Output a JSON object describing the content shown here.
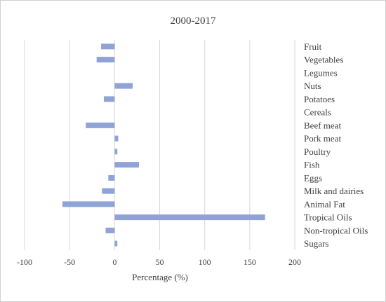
{
  "chart_data": {
    "type": "bar",
    "orientation": "horizontal",
    "title": "2000-2017",
    "xlabel": "Percentage (%)",
    "ylabel": "",
    "xlim": [
      -100,
      200
    ],
    "xticks": [
      -100,
      -50,
      0,
      50,
      100,
      150,
      200
    ],
    "grid": true,
    "color": "#8fa3d6",
    "categories": [
      "Fruit",
      "Vegetables",
      "Legumes",
      "Nuts",
      "Potatoes",
      "Cereals",
      "Beef meat",
      "Pork meat",
      "Poultry",
      "Fish",
      "Eggs",
      "Milk and dairies",
      "Animal Fat",
      "Tropical Oils",
      "Non-tropical Oils",
      "Sugars"
    ],
    "values": [
      -15,
      -20,
      0,
      20,
      -12,
      0,
      -32,
      4,
      3,
      27,
      -7,
      -14,
      -58,
      167,
      -10,
      3
    ]
  }
}
